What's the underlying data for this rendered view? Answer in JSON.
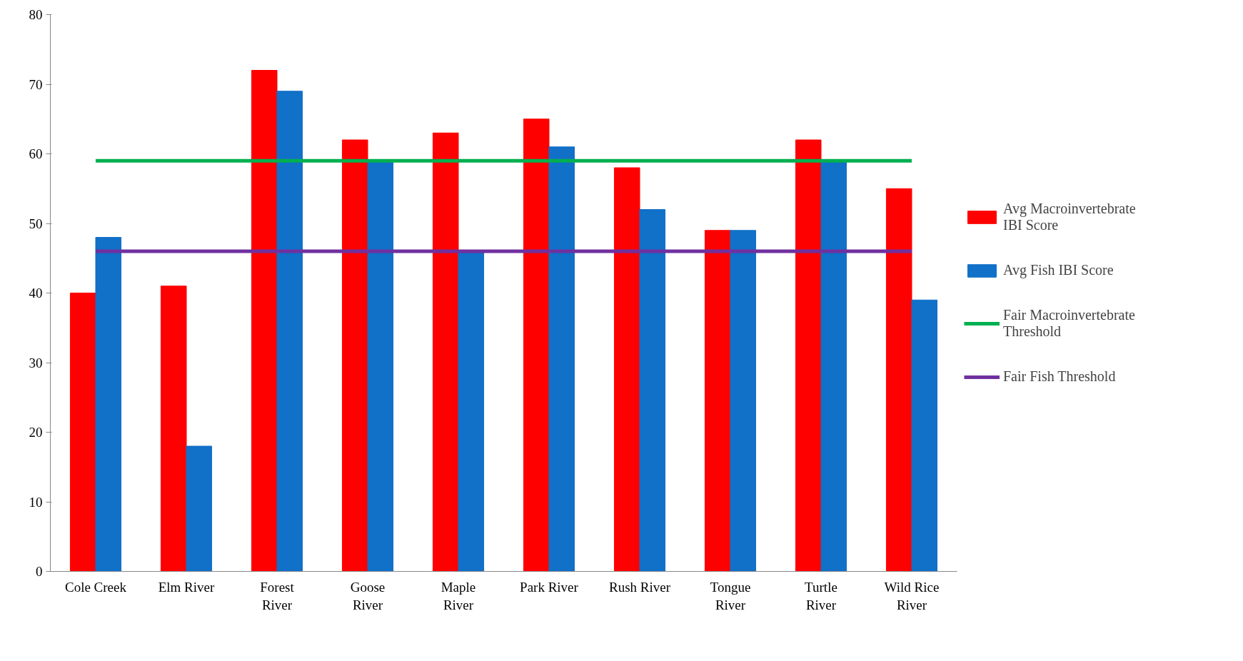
{
  "chart_data": {
    "type": "bar",
    "categories": [
      "Cole Creek",
      "Elm River",
      "Forest River",
      "Goose River",
      "Maple River",
      "Park River",
      "Rush River",
      "Tongue River",
      "Turtle River",
      "Wild Rice River"
    ],
    "series": [
      {
        "name": "Avg Macroinvertebrate IBI Score",
        "color": "#ff0000",
        "values": [
          40,
          41,
          72,
          62,
          63,
          65,
          58,
          49,
          62,
          55
        ]
      },
      {
        "name": "Avg Fish IBI Score",
        "color": "#1170c8",
        "values": [
          48,
          18,
          69,
          59,
          46,
          61,
          52,
          49,
          59,
          39
        ]
      },
      {
        "name": "Fair Macroinvertebrate Threshold",
        "type": "line",
        "color": "#00b050",
        "values": [
          59,
          59,
          59,
          59,
          59,
          59,
          59,
          59,
          59,
          59
        ]
      },
      {
        "name": "Fair Fish Threshold",
        "type": "line",
        "color": "#7030a0",
        "values": [
          46,
          46,
          46,
          46,
          46,
          46,
          46,
          46,
          46,
          46
        ]
      }
    ],
    "ylim": [
      0,
      80
    ],
    "yticks": [
      0,
      10,
      20,
      30,
      40,
      50,
      60,
      70,
      80
    ],
    "grid": false,
    "legend": "right"
  }
}
